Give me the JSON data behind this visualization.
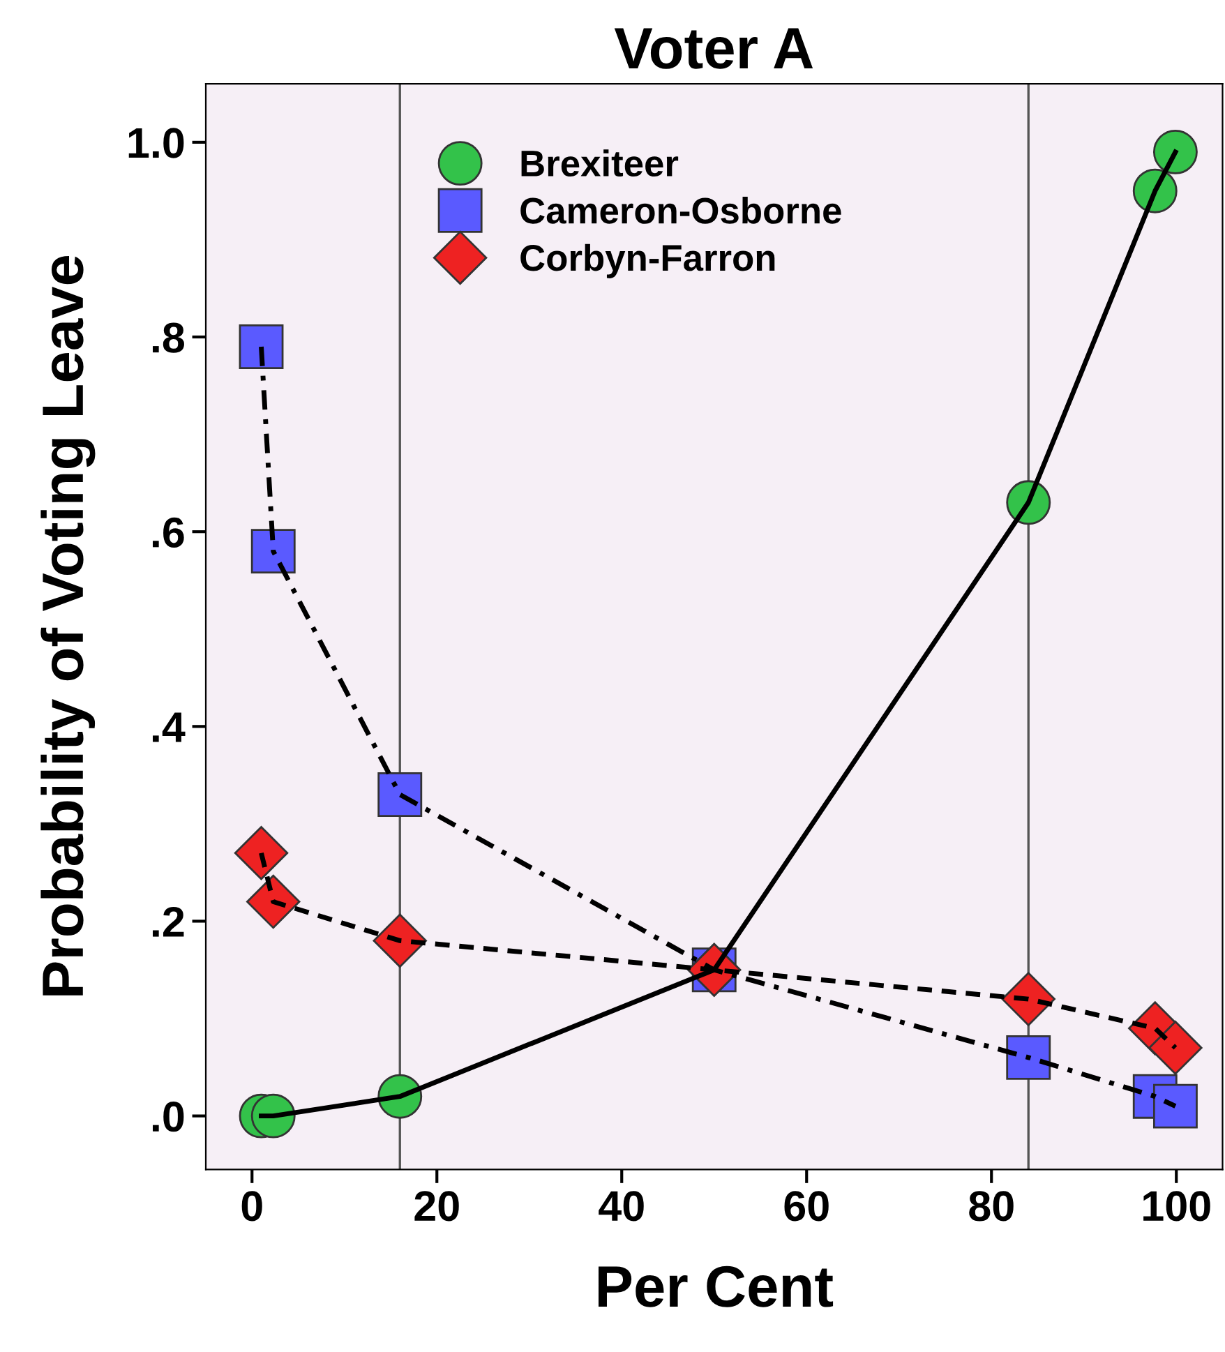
{
  "chart_data": {
    "type": "line",
    "title": "Voter A",
    "xlabel": "Per Cent",
    "ylabel": "Probability of Voting Leave",
    "series": [
      {
        "name": "Brexiteer",
        "color": "#33c24a",
        "marker": "circle",
        "line_style": "solid",
        "x": [
          1,
          2.3,
          16,
          50,
          84,
          97.7,
          99.9
        ],
        "values": [
          0.0,
          0.0,
          0.02,
          0.15,
          0.63,
          0.95,
          0.99
        ]
      },
      {
        "name": "Cameron-Osborne",
        "color": "#5a5aff",
        "marker": "square",
        "line_style": "dashdot",
        "x": [
          1,
          2.3,
          16,
          50,
          84,
          97.7,
          99.9
        ],
        "values": [
          0.79,
          0.58,
          0.33,
          0.15,
          0.06,
          0.02,
          0.01
        ]
      },
      {
        "name": "Corbyn-Farron",
        "color": "#ee2222",
        "marker": "diamond",
        "line_style": "dashed",
        "x": [
          1,
          2.3,
          16,
          50,
          84,
          97.7,
          99.9
        ],
        "values": [
          0.27,
          0.22,
          0.18,
          0.15,
          0.12,
          0.09,
          0.07
        ]
      }
    ],
    "xlim": [
      -5,
      105
    ],
    "xticks": [
      0,
      20,
      40,
      60,
      80,
      100
    ],
    "ylim": [
      -0.055,
      1.06
    ],
    "yticks": [
      {
        "value": 0,
        "label": ".0"
      },
      {
        "value": 0.2,
        "label": ".2"
      },
      {
        "value": 0.4,
        "label": ".4"
      },
      {
        "value": 0.6,
        "label": ".6"
      },
      {
        "value": 0.8,
        "label": ".8"
      },
      {
        "value": 1.0,
        "label": "1.0"
      }
    ],
    "ref_lines": [
      {
        "axis": "x",
        "value": 16,
        "color": "#555555"
      },
      {
        "axis": "x",
        "value": 84,
        "color": "#555555"
      }
    ],
    "grid": false,
    "legend": "top"
  }
}
